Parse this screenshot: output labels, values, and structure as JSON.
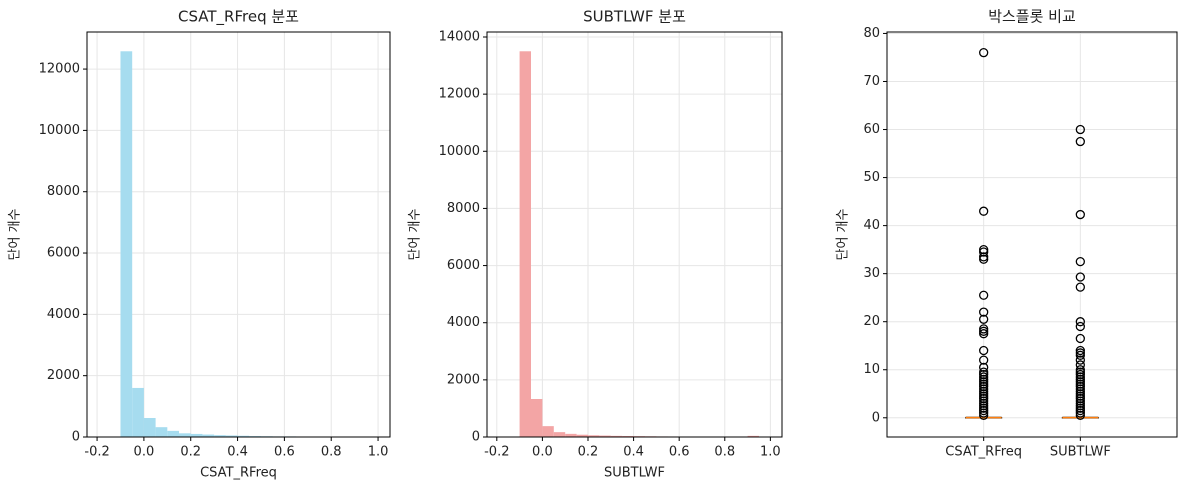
{
  "chart_data": [
    {
      "type": "histogram",
      "title": "CSAT_RFreq 분포",
      "xlabel": "CSAT_RFreq",
      "ylabel": "단어 개수",
      "bins": [
        -0.1,
        -0.05,
        0,
        0.05,
        0.1,
        0.15,
        0.2,
        0.25,
        0.3,
        0.35,
        0.4,
        0.45,
        0.5,
        0.55,
        0.6,
        0.65,
        0.7,
        0.75,
        0.8,
        0.85,
        0.9,
        0.95
      ],
      "counts": [
        12580,
        1600,
        620,
        320,
        200,
        120,
        100,
        80,
        60,
        50,
        40,
        30,
        25,
        20,
        20,
        15,
        12,
        10,
        8,
        10,
        5
      ],
      "color": "#a6dcef",
      "xlim": [
        -0.243,
        1.051
      ],
      "ylim": [
        0,
        13209
      ],
      "xticks": [
        -0.2,
        {
          "value": 0,
          "label": "0.0"
        },
        0.2,
        0.4,
        0.6,
        0.8,
        {
          "value": 1,
          "label": "1.0"
        }
      ],
      "yticks": [
        0,
        2000,
        4000,
        6000,
        8000,
        10000,
        12000
      ],
      "grid": true
    },
    {
      "type": "histogram",
      "title": "SUBTLWF 분포",
      "xlabel": "SUBTLWF",
      "ylabel": "단어 개수",
      "bins": [
        -0.1,
        -0.05,
        0,
        0.05,
        0.1,
        0.15,
        0.2,
        0.25,
        0.3,
        0.35,
        0.4,
        0.45,
        0.5,
        0.55,
        0.6,
        0.65,
        0.7,
        0.75,
        0.8,
        0.85,
        0.9,
        0.95
      ],
      "counts": [
        13500,
        1330,
        380,
        170,
        110,
        80,
        60,
        50,
        40,
        35,
        30,
        25,
        20,
        18,
        15,
        12,
        10,
        8,
        6,
        5,
        40
      ],
      "color": "#f3a5a5",
      "xlim": [
        -0.243,
        1.051
      ],
      "ylim": [
        0,
        14175
      ],
      "xticks": [
        -0.2,
        {
          "value": 0,
          "label": "0.0"
        },
        0.2,
        0.4,
        0.6,
        0.8,
        {
          "value": 1,
          "label": "1.0"
        }
      ],
      "yticks": [
        0,
        2000,
        4000,
        6000,
        8000,
        10000,
        12000,
        14000
      ],
      "grid": true
    },
    {
      "type": "box",
      "title": "박스플롯 비교",
      "ylabel": "단어 개수",
      "categories": [
        "CSAT_RFreq",
        "SUBTLWF"
      ],
      "boxes": [
        {
          "q1": 0,
          "median": 0.02,
          "q3": 0.05,
          "whisker_low": 0,
          "whisker_high": 0.12,
          "outliers": [
            76,
            43,
            35,
            34.5,
            33.5,
            33,
            25.5,
            22,
            20.5,
            18.5,
            18,
            17.5,
            14,
            12,
            10.5,
            9.5,
            9,
            8.5,
            8,
            7.5,
            7,
            6.5,
            6,
            5.5,
            5,
            4.5,
            4,
            3.5,
            3,
            2.5,
            2,
            1.5,
            1,
            0.5
          ]
        },
        {
          "q1": 0,
          "median": 0.02,
          "q3": 0.05,
          "whisker_low": 0,
          "whisker_high": 0.12,
          "outliers": [
            60,
            57.5,
            42.3,
            32.5,
            29.3,
            27.2,
            20,
            19,
            16.5,
            14,
            13.5,
            13,
            12,
            11,
            10,
            9.5,
            9,
            8.5,
            8,
            7.5,
            7,
            6.5,
            6,
            5.5,
            5,
            4.5,
            4,
            3.5,
            3,
            2.5,
            2,
            1.5,
            1,
            0.5
          ]
        }
      ],
      "color": "#000000",
      "median_color": "#ff7f0e",
      "ylim": [
        -4,
        80.3
      ],
      "yticks": [
        0,
        10,
        20,
        30,
        40,
        50,
        60,
        70,
        80
      ],
      "grid": true
    }
  ]
}
